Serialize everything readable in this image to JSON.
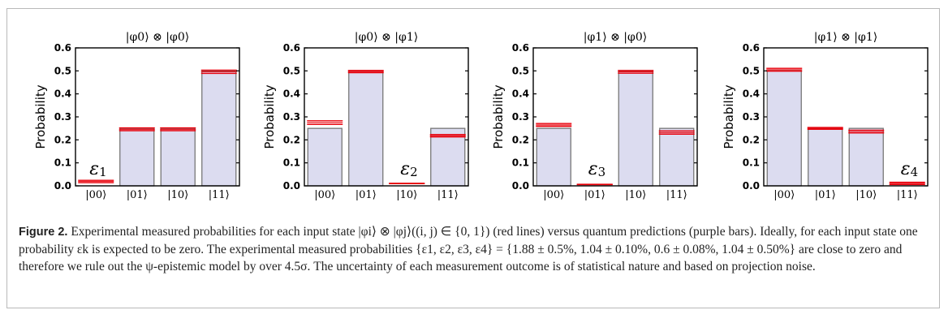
{
  "caption": {
    "label": "Figure 2.",
    "text": "Experimental measured probabilities for each input state |φi⟩ ⊗ |φj⟩((i, j) ∈ {0, 1}) (red lines) versus quantum predictions (purple bars). Ideally, for each input state one probability εk is expected to be zero. The experimental measured probabilities {ε1, ε2, ε3, ε4} = {1.88 ± 0.5%, 1.04 ± 0.10%, 0.6 ± 0.08%, 1.04 ± 0.50%} are close to zero and therefore we rule out the ψ-epistemic model by over 4.5σ. The uncertainty of each measurement outcome is of statistical nature and based on projection noise."
  },
  "colors": {
    "bar_fill": "#dcdcf0",
    "bar_edge": "#777777",
    "measured_line": "#e8000b"
  },
  "chart_data": [
    {
      "type": "bar",
      "title": "|φ0⟩ ⊗ |φ0⟩",
      "ylabel": "Probability",
      "ylim": [
        0,
        0.6
      ],
      "yticks": [
        "0.0",
        "0.1",
        "0.2",
        "0.3",
        "0.4",
        "0.5",
        "0.6"
      ],
      "categories": [
        "|00⟩",
        "|01⟩",
        "|10⟩",
        "|11⟩"
      ],
      "series": [
        {
          "name": "quantum prediction",
          "values": [
            0,
            0.25,
            0.25,
            0.5
          ]
        },
        {
          "name": "experimental measurement",
          "values": [
            0.019,
            0.246,
            0.246,
            0.496
          ],
          "errors": [
            0.005,
            0.006,
            0.006,
            0.007
          ]
        }
      ],
      "annotation": {
        "text": "ε",
        "sub": "1",
        "category_index": 0
      }
    },
    {
      "type": "bar",
      "title": "|φ0⟩ ⊗ |φ1⟩",
      "ylabel": "Probability",
      "ylim": [
        0,
        0.6
      ],
      "yticks": [
        "0.0",
        "0.1",
        "0.2",
        "0.3",
        "0.4",
        "0.5",
        "0.6"
      ],
      "categories": [
        "|00⟩",
        "|01⟩",
        "|10⟩",
        "|11⟩"
      ],
      "series": [
        {
          "name": "quantum prediction",
          "values": [
            0.25,
            0.5,
            0,
            0.25
          ]
        },
        {
          "name": "experimental measurement",
          "values": [
            0.275,
            0.497,
            0.0104,
            0.218
          ],
          "errors": [
            0.008,
            0.005,
            0.001,
            0.005
          ]
        }
      ],
      "annotation": {
        "text": "ε",
        "sub": "2",
        "category_index": 2
      }
    },
    {
      "type": "bar",
      "title": "|φ1⟩ ⊗ |φ0⟩",
      "ylabel": "Probability",
      "ylim": [
        0,
        0.6
      ],
      "yticks": [
        "0.0",
        "0.1",
        "0.2",
        "0.3",
        "0.4",
        "0.5",
        "0.6"
      ],
      "categories": [
        "|00⟩",
        "|01⟩",
        "|10⟩",
        "|11⟩"
      ],
      "series": [
        {
          "name": "quantum prediction",
          "values": [
            0.25,
            0,
            0.5,
            0.25
          ]
        },
        {
          "name": "experimental measurement",
          "values": [
            0.265,
            0.006,
            0.496,
            0.232
          ],
          "errors": [
            0.006,
            0.0008,
            0.006,
            0.007
          ]
        }
      ],
      "annotation": {
        "text": "ε",
        "sub": "3",
        "category_index": 1
      }
    },
    {
      "type": "bar",
      "title": "|φ1⟩ ⊗ |φ1⟩",
      "ylabel": "Probability",
      "ylim": [
        0,
        0.6
      ],
      "yticks": [
        "0.0",
        "0.1",
        "0.2",
        "0.3",
        "0.4",
        "0.5",
        "0.6"
      ],
      "categories": [
        "|00⟩",
        "|01⟩",
        "|10⟩",
        "|11⟩"
      ],
      "series": [
        {
          "name": "quantum prediction",
          "values": [
            0.5,
            0.25,
            0.25,
            0
          ]
        },
        {
          "name": "experimental measurement",
          "values": [
            0.505,
            0.25,
            0.236,
            0.0104
          ],
          "errors": [
            0.006,
            0.004,
            0.006,
            0.005
          ]
        }
      ],
      "annotation": {
        "text": "ε",
        "sub": "4",
        "category_index": 3
      }
    }
  ]
}
